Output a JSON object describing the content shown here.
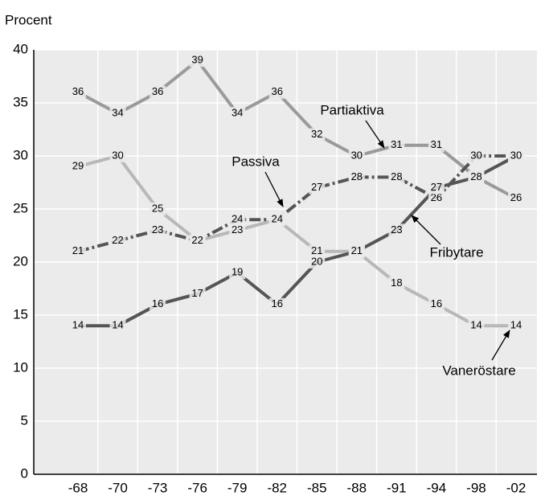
{
  "chart_data": {
    "type": "line",
    "y_axis_label": "Procent",
    "categories": [
      "-68",
      "-70",
      "-73",
      "-76",
      "-79",
      "-82",
      "-85",
      "-88",
      "-91",
      "-94",
      "-98",
      "-02"
    ],
    "series": [
      {
        "name": "Partiaktiva",
        "color": "#9a9a9a",
        "dashed": false,
        "values": [
          36,
          34,
          36,
          39,
          34,
          36,
          32,
          30,
          31,
          31,
          28,
          26
        ]
      },
      {
        "name": "Vaneröstare",
        "color": "#b8b8b8",
        "dashed": false,
        "values": [
          29,
          30,
          25,
          22,
          23,
          24,
          21,
          21,
          18,
          16,
          14,
          14
        ]
      },
      {
        "name": "Passiva",
        "color": "#555555",
        "dashed": true,
        "values": [
          21,
          22,
          23,
          22,
          24,
          24,
          27,
          28,
          28,
          26,
          30,
          30
        ]
      },
      {
        "name": "Fribytare",
        "color": "#555555",
        "dashed": false,
        "values": [
          14,
          14,
          16,
          17,
          19,
          16,
          20,
          21,
          23,
          27,
          28,
          30
        ]
      }
    ],
    "ylim": [
      0,
      40
    ],
    "yticks": [
      0,
      5,
      10,
      15,
      20,
      25,
      30,
      35,
      40
    ],
    "grid": true
  }
}
